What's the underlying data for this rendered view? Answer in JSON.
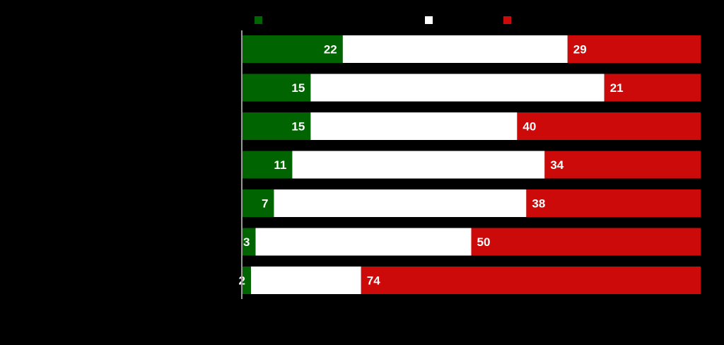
{
  "chart_data": {
    "type": "bar",
    "orientation": "horizontal",
    "stacked": true,
    "percent_stacked": true,
    "title": "",
    "xlabel": "",
    "ylabel": "",
    "xlim": [
      0,
      100
    ],
    "categories": [
      "",
      "",
      "",
      "",
      "",
      "",
      ""
    ],
    "series": [
      {
        "color": "#006400",
        "values": [
          22,
          15,
          15,
          11,
          7,
          3,
          2
        ],
        "labels": [
          "22",
          "15",
          "15",
          "11",
          "7",
          "3",
          "2"
        ]
      },
      {
        "color": "#ffffff",
        "values": [
          49,
          64,
          45,
          55,
          55,
          47,
          24
        ],
        "labels": [
          "",
          "",
          "",
          "",
          "",
          "",
          ""
        ]
      },
      {
        "color": "#cc0a0a",
        "values": [
          29,
          21,
          40,
          34,
          38,
          50,
          74
        ],
        "labels": [
          "29",
          "21",
          "40",
          "34",
          "38",
          "50",
          "74"
        ]
      }
    ],
    "legend": {
      "position": "top",
      "entries": [
        "",
        "",
        ""
      ]
    },
    "grid": false
  }
}
